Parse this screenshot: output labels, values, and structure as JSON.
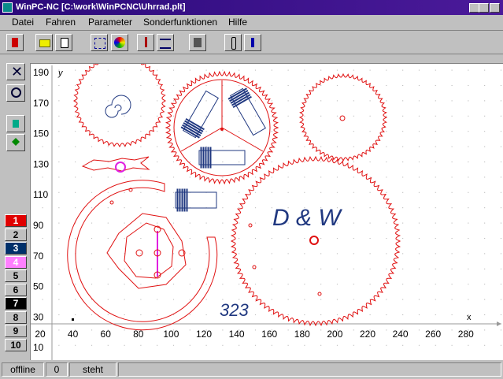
{
  "window": {
    "title": "WinPC-NC [C:\\work\\WinPCNC\\Uhrrad.plt]"
  },
  "menu": [
    "Datei",
    "Fahren",
    "Parameter",
    "Sonderfunktionen",
    "Hilfe"
  ],
  "pens": [
    "1",
    "2",
    "3",
    "4",
    "5",
    "6",
    "7",
    "8",
    "9",
    "10"
  ],
  "plot": {
    "y_label": "y",
    "x_label": "x",
    "yticks": [
      190,
      170,
      150,
      130,
      110,
      90,
      70,
      50,
      30,
      10
    ],
    "xticks": [
      20,
      40,
      60,
      80,
      100,
      120,
      140,
      160,
      180,
      200,
      220,
      240,
      260,
      280
    ],
    "annotations": [
      "D & W",
      "323"
    ]
  },
  "status": [
    "offline",
    "0",
    "steht"
  ]
}
